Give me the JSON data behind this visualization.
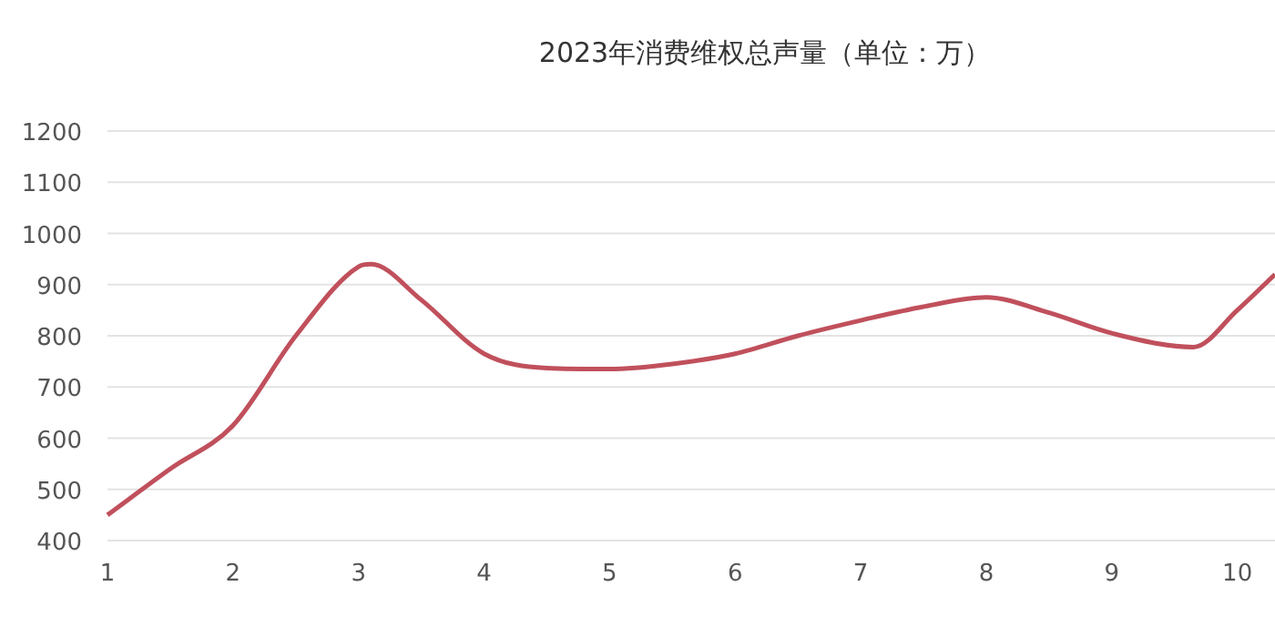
{
  "chart_data": {
    "type": "line",
    "title": "2023年消费维权总声量（单位：万）",
    "x": [
      1,
      1.5,
      2,
      2.5,
      3,
      3.1,
      3.5,
      4,
      4.5,
      5,
      5.5,
      6,
      6.5,
      7,
      7.5,
      8,
      8.5,
      9,
      9.65,
      10,
      10.3
    ],
    "series": [
      {
        "color": "#c0505c",
        "values": [
          450,
          540,
          625,
          800,
          935,
          940,
          870,
          765,
          737,
          735,
          745,
          765,
          800,
          830,
          857,
          875,
          845,
          805,
          778,
          850,
          920
        ]
      }
    ],
    "xlim": [
      1,
      10.3
    ],
    "xticks": [
      1,
      2,
      3,
      4,
      5,
      6,
      7,
      8,
      9,
      10
    ],
    "ylim": [
      400,
      1200
    ],
    "yticks": [
      400,
      500,
      600,
      700,
      800,
      900,
      1000,
      1100,
      1200
    ],
    "grid": "y"
  }
}
